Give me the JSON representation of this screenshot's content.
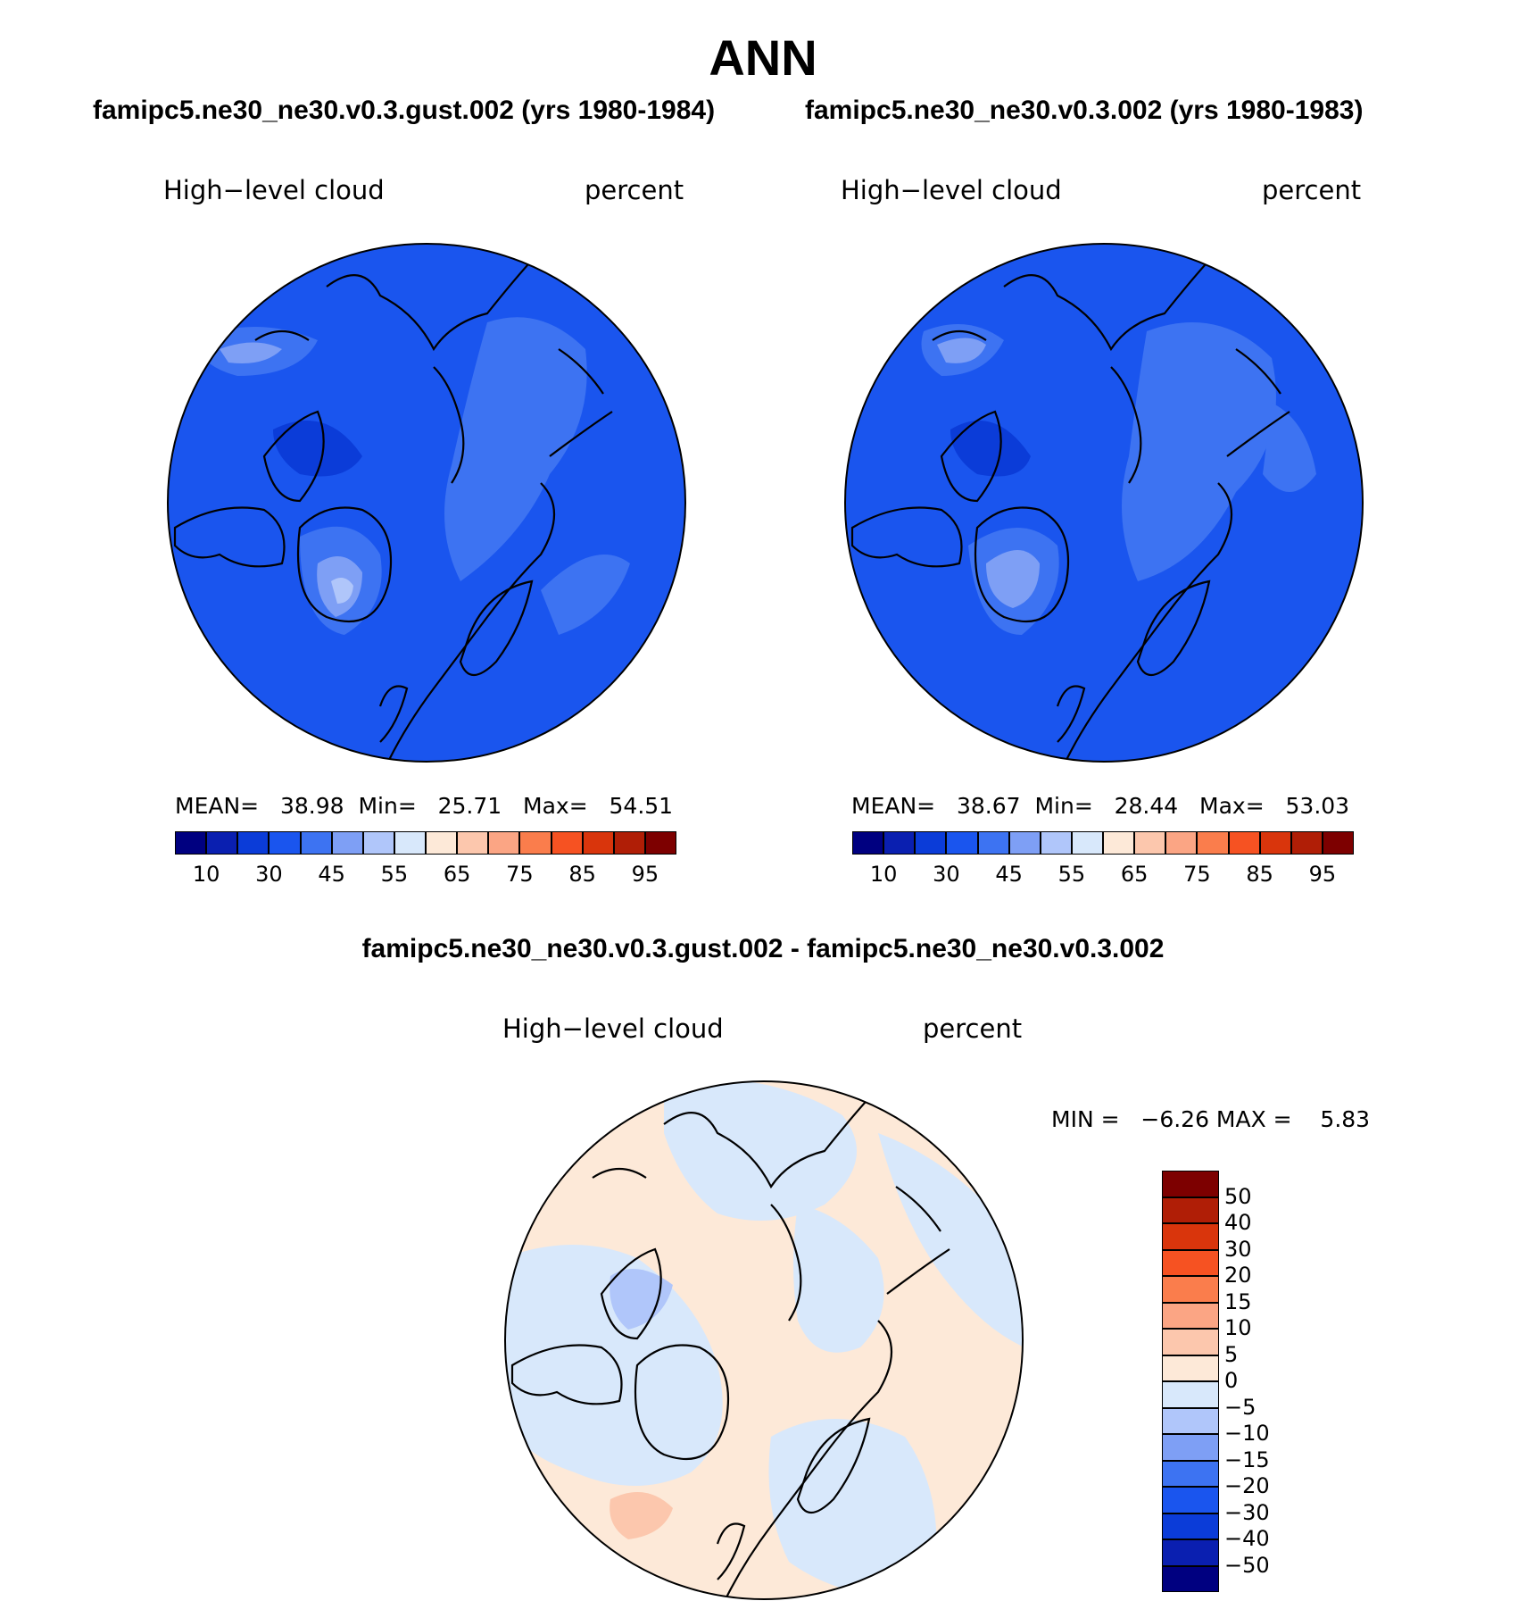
{
  "title": "ANN",
  "panels": [
    {
      "case_title": "famipc5.ne30_ne30.v0.3.gust.002 (yrs 1980-1984)",
      "variable": "High−level cloud",
      "units": "percent",
      "stats": {
        "mean_label": "MEAN=",
        "mean": "38.98",
        "min_label": "Min=",
        "min": "25.71",
        "max_label": "Max=",
        "max": "54.51"
      }
    },
    {
      "case_title": "famipc5.ne30_ne30.v0.3.002 (yrs 1980-1983)",
      "variable": "High−level cloud",
      "units": "percent",
      "stats": {
        "mean_label": "MEAN=",
        "mean": "38.67",
        "min_label": "Min=",
        "min": "28.44",
        "max_label": "Max=",
        "max": "53.03"
      }
    }
  ],
  "diff_panel": {
    "title": "famipc5.ne30_ne30.v0.3.gust.002 - famipc5.ne30_ne30.v0.3.002",
    "variable": "High−level cloud",
    "units": "percent",
    "stats_text": "MIN =   −6.26 MAX =    5.83"
  },
  "colorbar_main": {
    "colors": [
      "#000080",
      "#0a1fb0",
      "#0b3cd8",
      "#1a55ee",
      "#3d73f2",
      "#7e9ff5",
      "#b0c6fa",
      "#d8e8fb",
      "#fde9d8",
      "#fcc7ad",
      "#fba584",
      "#fa7d4c",
      "#f65222",
      "#d9350c",
      "#b01e06",
      "#7d0000"
    ],
    "labels": [
      "10",
      "30",
      "45",
      "55",
      "65",
      "75",
      "85",
      "95"
    ]
  },
  "colorbar_diff": {
    "colors": [
      "#000080",
      "#0a1fb0",
      "#0b3cd8",
      "#1a55ee",
      "#3d73f2",
      "#7e9ff5",
      "#b0c6fa",
      "#d8e8fb",
      "#fde9d8",
      "#fcc7ad",
      "#fba584",
      "#fa7d4c",
      "#f65222",
      "#d9350c",
      "#b01e06",
      "#7d0000"
    ],
    "labels": [
      "50",
      "40",
      "30",
      "20",
      "15",
      "10",
      "5",
      "0",
      "−5",
      "−10",
      "−15",
      "−20",
      "−30",
      "−40",
      "−50"
    ]
  }
}
